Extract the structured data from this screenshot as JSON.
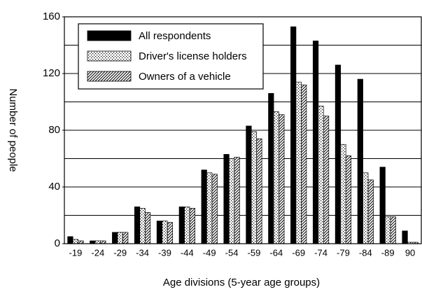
{
  "chart_data": {
    "type": "bar",
    "x_label": "Age divisions (5-year age groups)",
    "y_label": "Number of people",
    "categories": [
      "-19",
      "-24",
      "-29",
      "-34",
      "-39",
      "-44",
      "-49",
      "-54",
      "-59",
      "-64",
      "-69",
      "-74",
      "-79",
      "-84",
      "-89",
      "90"
    ],
    "series": [
      {
        "name": "All respondents",
        "color": "#000000",
        "pattern": "solid",
        "values": [
          5,
          2,
          8,
          26,
          16,
          26,
          52,
          63,
          83,
          106,
          153,
          143,
          126,
          116,
          54,
          9
        ]
      },
      {
        "name": "Driver's license holders",
        "color": "#000000",
        "pattern": "dots",
        "values": [
          3,
          2,
          8,
          25,
          16,
          26,
          50,
          60,
          79,
          93,
          114,
          97,
          70,
          50,
          19,
          1
        ]
      },
      {
        "name": "Owners of a vehicle",
        "color": "#000000",
        "pattern": "hatch",
        "values": [
          2,
          2,
          8,
          22,
          15,
          25,
          49,
          61,
          74,
          91,
          112,
          90,
          62,
          45,
          19,
          1
        ]
      }
    ],
    "ylim": [
      0,
      160
    ],
    "yticks": [
      0,
      40,
      80,
      120,
      160
    ],
    "grid_yticks": [
      20,
      40,
      60,
      80,
      100,
      120,
      140
    ],
    "grid": true,
    "legend": "top-left"
  }
}
